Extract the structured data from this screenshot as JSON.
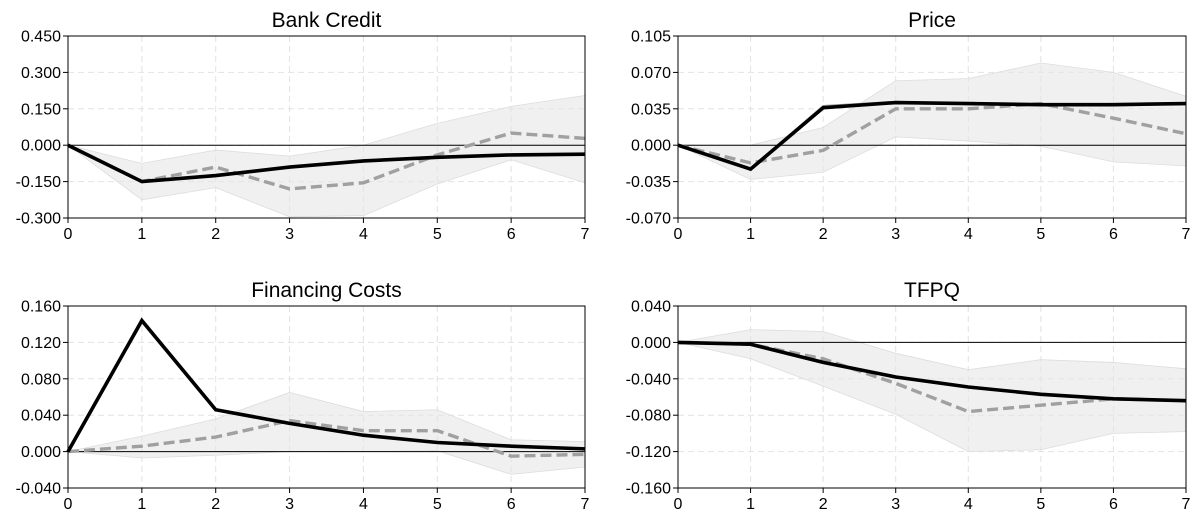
{
  "chart_data": [
    {
      "type": "line",
      "title": "Bank Credit",
      "xlabel": "",
      "ylabel": "",
      "xlim": [
        0,
        7
      ],
      "ylim": [
        -0.3,
        0.45
      ],
      "y_ticks": [
        -0.3,
        -0.15,
        0,
        0.15,
        0.3,
        0.45
      ],
      "x": [
        0,
        1,
        2,
        3,
        4,
        5,
        6,
        7
      ],
      "series": [
        {
          "style": "solid-black",
          "values": [
            0,
            -0.15,
            -0.125,
            -0.09,
            -0.065,
            -0.05,
            -0.04,
            -0.037
          ]
        },
        {
          "style": "dashed-gray",
          "values": [
            0,
            -0.15,
            -0.09,
            -0.18,
            -0.155,
            -0.04,
            0.05,
            0.028
          ]
        }
      ],
      "band": {
        "lower": [
          0,
          -0.225,
          -0.175,
          -0.295,
          -0.29,
          -0.16,
          -0.06,
          -0.155
        ],
        "upper": [
          0,
          -0.075,
          -0.02,
          -0.045,
          0.0,
          0.09,
          0.16,
          0.205
        ]
      },
      "grid": true
    },
    {
      "type": "line",
      "title": "Price",
      "xlabel": "",
      "ylabel": "",
      "xlim": [
        0,
        7
      ],
      "ylim": [
        -0.07,
        0.105
      ],
      "y_ticks": [
        -0.07,
        -0.035,
        0,
        0.035,
        0.07,
        0.105
      ],
      "x": [
        0,
        1,
        2,
        3,
        4,
        5,
        6,
        7
      ],
      "series": [
        {
          "style": "solid-black",
          "values": [
            0,
            -0.023,
            0.036,
            0.041,
            0.04,
            0.039,
            0.039,
            0.04
          ]
        },
        {
          "style": "dashed-gray",
          "values": [
            0,
            -0.017,
            -0.005,
            0.035,
            0.035,
            0.04,
            0.026,
            0.011
          ]
        },
        {
          "style": "gray-thin",
          "values": [
            0,
            -0.022,
            0.038,
            0.042,
            0.04,
            0.039,
            0.04,
            0.04
          ]
        }
      ],
      "band": {
        "lower": [
          0,
          -0.033,
          -0.026,
          0.008,
          0.004,
          -0.001,
          -0.016,
          -0.02
        ],
        "upper": [
          0,
          0.0,
          0.017,
          0.062,
          0.064,
          0.079,
          0.07,
          0.047
        ]
      },
      "grid": true
    },
    {
      "type": "line",
      "title": "Financing Costs",
      "xlabel": "",
      "ylabel": "",
      "xlim": [
        0,
        7
      ],
      "ylim": [
        -0.04,
        0.16
      ],
      "y_ticks": [
        -0.04,
        0,
        0.04,
        0.08,
        0.12,
        0.16
      ],
      "x": [
        0,
        1,
        2,
        3,
        4,
        5,
        6,
        7
      ],
      "series": [
        {
          "style": "solid-black",
          "values": [
            0,
            0.144,
            0.046,
            0.031,
            0.018,
            0.01,
            0.006,
            0.003
          ]
        },
        {
          "style": "dashed-gray",
          "values": [
            0,
            0.006,
            0.016,
            0.034,
            0.023,
            0.023,
            -0.005,
            -0.003
          ]
        }
      ],
      "band": {
        "lower": [
          0,
          -0.007,
          -0.004,
          0.0,
          0.0,
          0.001,
          -0.025,
          -0.017
        ],
        "upper": [
          0,
          0.017,
          0.036,
          0.065,
          0.044,
          0.046,
          0.013,
          0.011
        ]
      },
      "grid": true
    },
    {
      "type": "line",
      "title": "TFPQ",
      "xlabel": "",
      "ylabel": "",
      "xlim": [
        0,
        7
      ],
      "ylim": [
        -0.16,
        0.04
      ],
      "y_ticks": [
        -0.16,
        -0.12,
        -0.08,
        -0.04,
        0,
        0.04
      ],
      "x": [
        0,
        1,
        2,
        3,
        4,
        5,
        6,
        7
      ],
      "series": [
        {
          "style": "solid-black",
          "values": [
            0,
            -0.002,
            -0.022,
            -0.038,
            -0.049,
            -0.057,
            -0.062,
            -0.064
          ]
        },
        {
          "style": "dashed-gray",
          "values": [
            0,
            -0.002,
            -0.018,
            -0.045,
            -0.076,
            -0.069,
            -0.062,
            -0.064
          ]
        }
      ],
      "band": {
        "lower": [
          0,
          -0.018,
          -0.048,
          -0.079,
          -0.12,
          -0.118,
          -0.1,
          -0.098
        ],
        "upper": [
          0,
          0.014,
          0.012,
          -0.012,
          -0.03,
          -0.019,
          -0.022,
          -0.029
        ]
      },
      "grid": true
    }
  ]
}
